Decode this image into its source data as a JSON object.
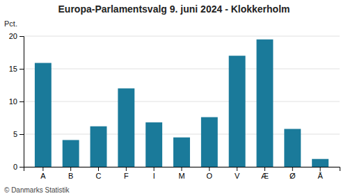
{
  "chart_data": {
    "type": "bar",
    "title": "Europa-Parlamentsvalg 9. juni 2024 - Klokkerholm",
    "categories": [
      "A",
      "B",
      "C",
      "F",
      "I",
      "M",
      "O",
      "V",
      "Æ",
      "Ø",
      "Å"
    ],
    "values": [
      15.9,
      4.1,
      6.2,
      12.0,
      6.8,
      4.5,
      7.6,
      17.0,
      19.5,
      5.8,
      1.2
    ],
    "color": "#1a7a9a",
    "ylabel": "Pct.",
    "ylim": [
      0,
      20
    ],
    "yticks": [
      0,
      5,
      10,
      15,
      20
    ],
    "grid": true,
    "annotations": [
      "© Danmarks Statistik"
    ]
  }
}
